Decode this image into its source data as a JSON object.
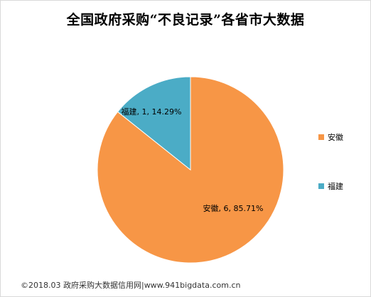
{
  "chart_data": {
    "type": "pie",
    "title": "全国政府采购“不良记录”各省市大数据",
    "categories": [
      "安徽",
      "福建"
    ],
    "values": [
      6,
      1
    ],
    "percentages": [
      "85.71%",
      "14.29%"
    ],
    "data_labels": [
      "安徽, 6, 85.71%",
      "福建, 1, 14.29%"
    ],
    "colors": [
      "#F79646",
      "#4BACC6"
    ],
    "start_angle_deg": 0,
    "direction": "clockwise",
    "legend": [
      "安徽",
      "福建"
    ],
    "legend_position": "right"
  },
  "footer": {
    "text": "©2018.03 政府采购大数据信用网|www.941bigdata.com.cn"
  }
}
